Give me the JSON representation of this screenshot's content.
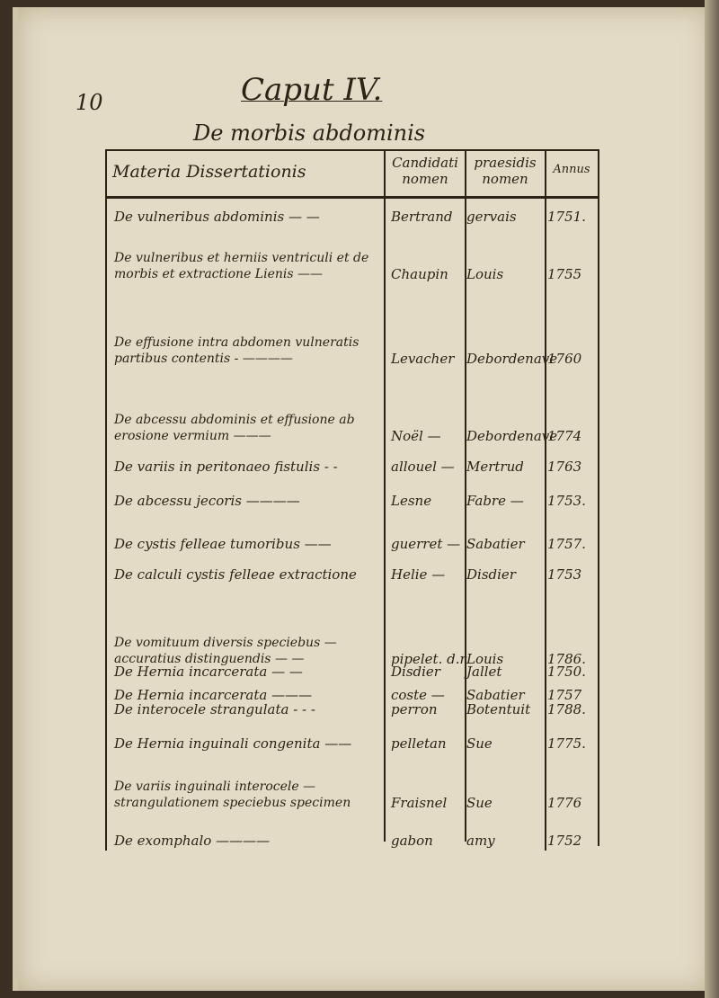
{
  "page": {
    "page_number": "10",
    "chapter_title": "Caput IV.",
    "subtitle": "De morbis abdominis"
  },
  "table": {
    "headers": [
      "Materia Dissertationis",
      "Candidati nomen",
      "praesidis nomen",
      "Annus"
    ],
    "rows": [
      {
        "materia": "De vulneribus abdominis — —",
        "candidatus": "Bertrand",
        "praeses": "gervais",
        "annus": "1751."
      },
      {
        "materia": "De vulneribus et herniis ventriculi et de morbis et extractione Lienis ——",
        "candidatus": "Chaupin",
        "praeses": "Louis",
        "annus": "1755"
      },
      {
        "materia": "De effusione intra abdomen vulneratis partibus contentis - ————",
        "candidatus": "Levacher",
        "praeses": "Debordenave",
        "annus": "1760"
      },
      {
        "materia": "De abcessu abdominis et effusione ab erosione vermium ———",
        "candidatus": "Noël —",
        "praeses": "Debordenave",
        "annus": "1774"
      },
      {
        "materia": "De variis in peritonaeo fistulis - -",
        "candidatus": "allouel —",
        "praeses": "Mertrud",
        "annus": "1763"
      },
      {
        "materia": "De abcessu jecoris ————",
        "candidatus": "Lesne",
        "praeses": "Fabre —",
        "annus": "1753."
      },
      {
        "materia": "De cystis felleae tumoribus ——",
        "candidatus": "guerret —",
        "praeses": "Sabatier",
        "annus": "1757."
      },
      {
        "materia": "De calculi cystis felleae extractione",
        "candidatus": "Helie —",
        "praeses": "Disdier",
        "annus": "1753"
      },
      {
        "materia": "De vomituum diversis speciebus — accuratius distinguendis — —",
        "candidatus": "pipelet. d.r",
        "praeses": "Louis",
        "annus": "1786."
      },
      {
        "materia": "De Hernia incarcerata — —",
        "candidatus": "Disdier",
        "praeses": "Jallet",
        "annus": "1750."
      },
      {
        "materia": "De Hernia incarcerata ———",
        "candidatus": "coste —",
        "praeses": "Sabatier",
        "annus": "1757"
      },
      {
        "materia": "De interocele strangulata - - -",
        "candidatus": "perron",
        "praeses": "Botentuit",
        "annus": "1788."
      },
      {
        "materia": "De Hernia inguinali congenita ——",
        "candidatus": "pelletan",
        "praeses": "Sue",
        "annus": "1775."
      },
      {
        "materia": "De variis inguinali interocele — strangulationem speciebus specimen",
        "candidatus": "Fraisnel",
        "praeses": "Sue",
        "annus": "1776"
      },
      {
        "materia": "De exomphalo ————",
        "candidatus": "gabon",
        "praeses": "amy",
        "annus": "1752"
      }
    ]
  }
}
